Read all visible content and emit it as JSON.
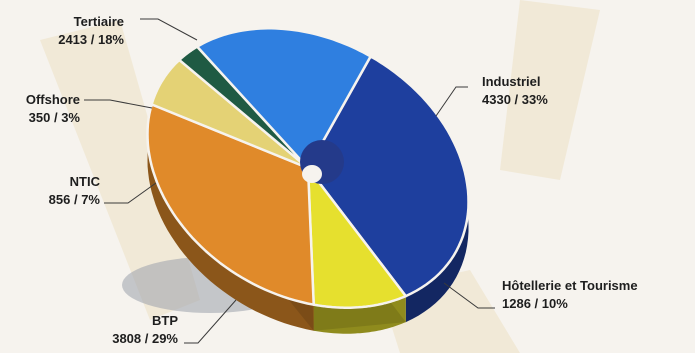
{
  "chart_data": {
    "type": "pie",
    "title": "",
    "slices": [
      {
        "label": "Industriel",
        "value": 4330,
        "percent": "33%",
        "value_text": "4330 / 33%",
        "color": "#1e3f9e"
      },
      {
        "label": "Hôtellerie et Tourisme",
        "value": 1286,
        "percent": "10%",
        "value_text": "1286 / 10%",
        "color": "#e6e02e"
      },
      {
        "label": "BTP",
        "value": 3808,
        "percent": "29%",
        "value_text": "3808 / 29%",
        "color": "#e08a2a"
      },
      {
        "label": "NTIC",
        "value": 856,
        "percent": "7%",
        "value_text": "856 / 7%",
        "color": "#e4d275"
      },
      {
        "label": "Offshore",
        "value": 350,
        "percent": "3%",
        "value_text": "350 / 3%",
        "color": "#1f5a43"
      },
      {
        "label": "Tertiaire",
        "value": 2413,
        "percent": "18%",
        "value_text": "2413 / 18%",
        "color": "#2f7fe0"
      }
    ]
  }
}
